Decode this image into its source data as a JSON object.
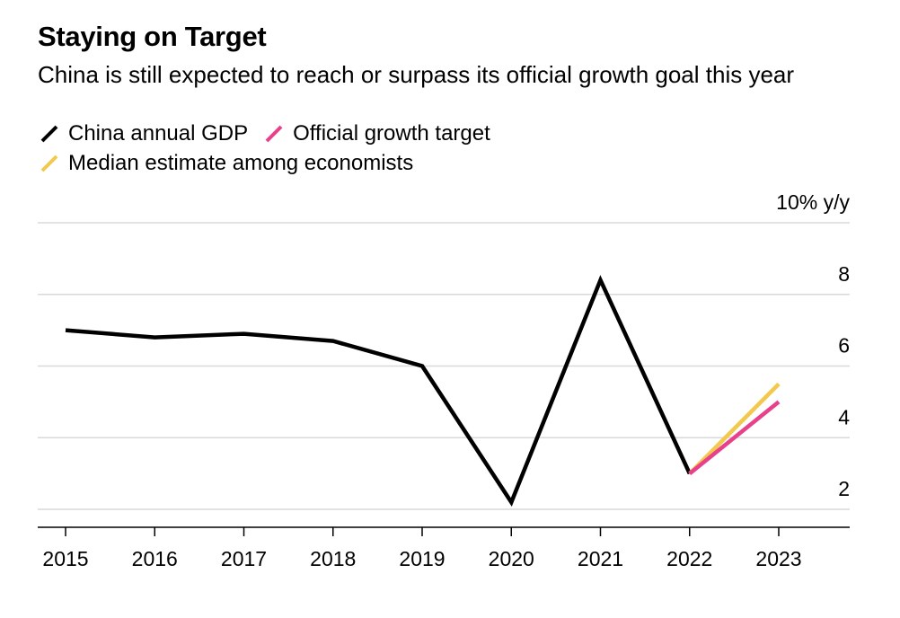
{
  "title": "Staying on Target",
  "subtitle": "China is still expected to reach or surpass its official growth goal this year",
  "legend": [
    {
      "label": "China annual GDP",
      "color": "#000000"
    },
    {
      "label": "Official growth target",
      "color": "#e8408a"
    },
    {
      "label": "Median estimate among economists",
      "color": "#f2c94c"
    }
  ],
  "chart_data": {
    "type": "line",
    "title": "Staying on Target",
    "subtitle": "China is still expected to reach or surpass its official growth goal this year",
    "ylabel": "10% y/y",
    "ylim": [
      1.5,
      10
    ],
    "yticks": [
      2,
      4,
      6,
      8,
      10
    ],
    "ytick_labels": [
      "2",
      "4",
      "6",
      "8",
      "10% y/y"
    ],
    "x": [
      "2015",
      "2016",
      "2017",
      "2018",
      "2019",
      "2020",
      "2021",
      "2022",
      "2023"
    ],
    "grid": true,
    "legend_position": "top-left",
    "series": [
      {
        "name": "China annual GDP",
        "color": "#000000",
        "points": [
          [
            "2015",
            7.0
          ],
          [
            "2016",
            6.8
          ],
          [
            "2017",
            6.9
          ],
          [
            "2018",
            6.7
          ],
          [
            "2019",
            6.0
          ],
          [
            "2020",
            2.2
          ],
          [
            "2021",
            8.4
          ],
          [
            "2022",
            3.0
          ]
        ]
      },
      {
        "name": "Median estimate among economists",
        "color": "#f2c94c",
        "points": [
          [
            "2022",
            3.0
          ],
          [
            "2023",
            5.5
          ]
        ]
      },
      {
        "name": "Official growth target",
        "color": "#e8408a",
        "points": [
          [
            "2022",
            3.0
          ],
          [
            "2023",
            5.0
          ]
        ]
      }
    ]
  }
}
